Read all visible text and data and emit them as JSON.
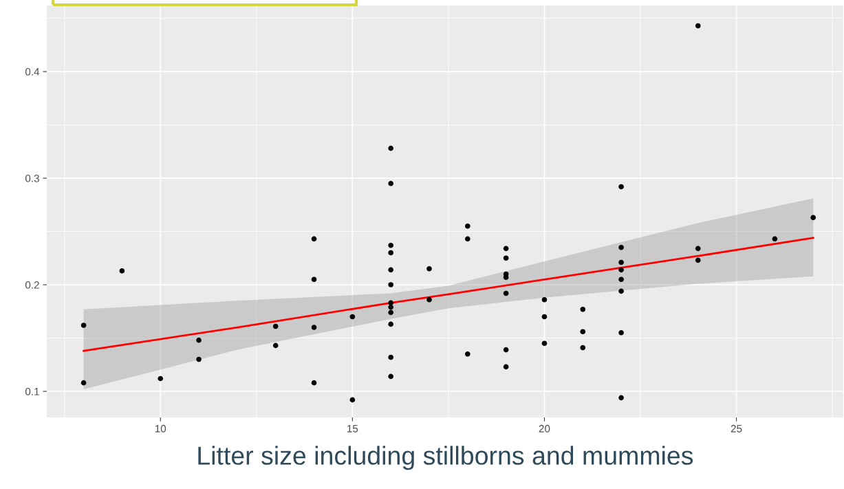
{
  "chart_data": {
    "type": "scatter",
    "xlabel": "Litter size including stillborns and mummies",
    "xlim": [
      7.04,
      27.78
    ],
    "ylim": [
      0.0755,
      0.462
    ],
    "xticks": [
      10,
      15,
      20,
      25
    ],
    "yticks": [
      0.1,
      0.2,
      0.3,
      0.4
    ],
    "grid": true,
    "series": [
      {
        "marker": "circle",
        "color": "#000000",
        "x": [
          8,
          8,
          9,
          10,
          11,
          11,
          13,
          13,
          14,
          14,
          14,
          14,
          15,
          15,
          16,
          16,
          16,
          16,
          16,
          16,
          16,
          16,
          16,
          16,
          16,
          16,
          17,
          17,
          18,
          18,
          18,
          19,
          19,
          19,
          19,
          19,
          19,
          19,
          20,
          20,
          20,
          21,
          21,
          21,
          22,
          22,
          22,
          22,
          22,
          22,
          22,
          22,
          24,
          24,
          24,
          26,
          27
        ],
        "values": [
          0.162,
          0.108,
          0.213,
          0.112,
          0.148,
          0.13,
          0.161,
          0.143,
          0.243,
          0.205,
          0.16,
          0.108,
          0.17,
          0.092,
          0.328,
          0.295,
          0.237,
          0.23,
          0.214,
          0.2,
          0.183,
          0.179,
          0.174,
          0.163,
          0.132,
          0.114,
          0.215,
          0.186,
          0.255,
          0.243,
          0.135,
          0.234,
          0.225,
          0.21,
          0.207,
          0.192,
          0.139,
          0.123,
          0.186,
          0.17,
          0.145,
          0.177,
          0.156,
          0.141,
          0.292,
          0.235,
          0.221,
          0.214,
          0.205,
          0.194,
          0.155,
          0.094,
          0.443,
          0.234,
          0.223,
          0.243,
          0.263
        ]
      },
      {
        "type": "line",
        "marker": "none",
        "color": "#ff0000",
        "x": [
          8,
          12,
          16,
          17.5,
          20,
          24,
          27
        ],
        "values": [
          0.138,
          0.16,
          0.183,
          0.191,
          0.205,
          0.227,
          0.244
        ],
        "lower": [
          0.102,
          0.139,
          0.168,
          0.178,
          0.188,
          0.201,
          0.208
        ],
        "upper": [
          0.177,
          0.185,
          0.192,
          0.199,
          0.222,
          0.258,
          0.281
        ]
      }
    ]
  }
}
